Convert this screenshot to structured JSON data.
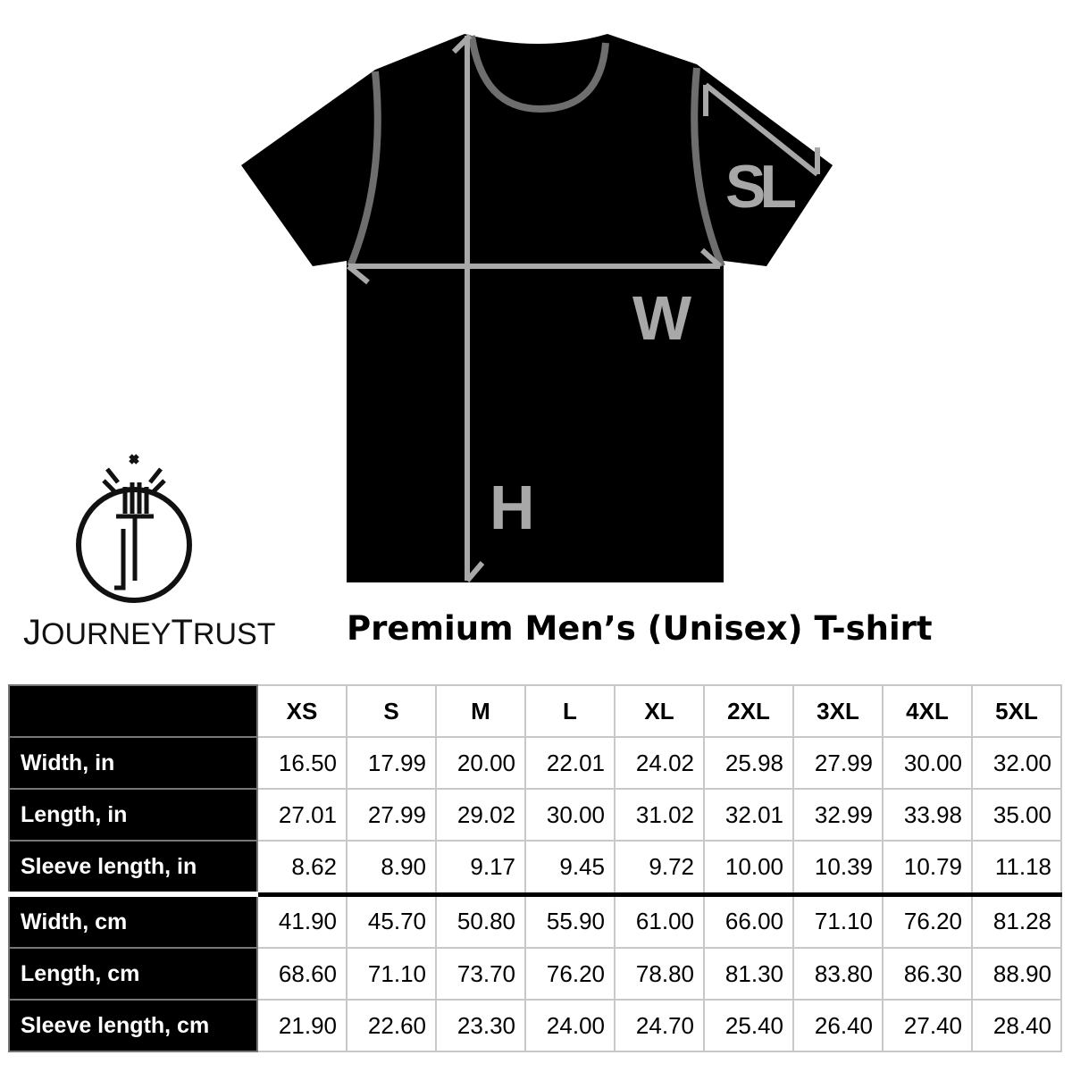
{
  "diagram": {
    "labels": {
      "sleeve": "SL",
      "width": "W",
      "height": "H"
    },
    "colors": {
      "shirt": "#000000",
      "measure_lines": "#a8a8a8",
      "seams": "#6e6e6e"
    }
  },
  "logo": {
    "text_first": "J",
    "text_rest1": "OURNEY",
    "text_second": "T",
    "text_rest2": "RUST",
    "monogram": "JT"
  },
  "title": "Premium Men’s (Unisex) T-shirt",
  "table": {
    "sizes": [
      "XS",
      "S",
      "M",
      "L",
      "XL",
      "2XL",
      "3XL",
      "4XL",
      "5XL"
    ],
    "rows": [
      {
        "label": "Width, in",
        "values": [
          "16.50",
          "17.99",
          "20.00",
          "22.01",
          "24.02",
          "25.98",
          "27.99",
          "30.00",
          "32.00"
        ]
      },
      {
        "label": "Length, in",
        "values": [
          "27.01",
          "27.99",
          "29.02",
          "30.00",
          "31.02",
          "32.01",
          "32.99",
          "33.98",
          "35.00"
        ]
      },
      {
        "label": "Sleeve length, in",
        "values": [
          "8.62",
          "8.90",
          "9.17",
          "9.45",
          "9.72",
          "10.00",
          "10.39",
          "10.79",
          "11.18"
        ]
      },
      {
        "label": "Width, cm",
        "values": [
          "41.90",
          "45.70",
          "50.80",
          "55.90",
          "61.00",
          "66.00",
          "71.10",
          "76.20",
          "81.28"
        ]
      },
      {
        "label": "Length, cm",
        "values": [
          "68.60",
          "71.10",
          "73.70",
          "76.20",
          "78.80",
          "81.30",
          "83.80",
          "86.30",
          "88.90"
        ]
      },
      {
        "label": "Sleeve length, cm",
        "values": [
          "21.90",
          "22.60",
          "23.30",
          "24.00",
          "24.70",
          "25.40",
          "26.40",
          "27.40",
          "28.40"
        ]
      }
    ]
  }
}
